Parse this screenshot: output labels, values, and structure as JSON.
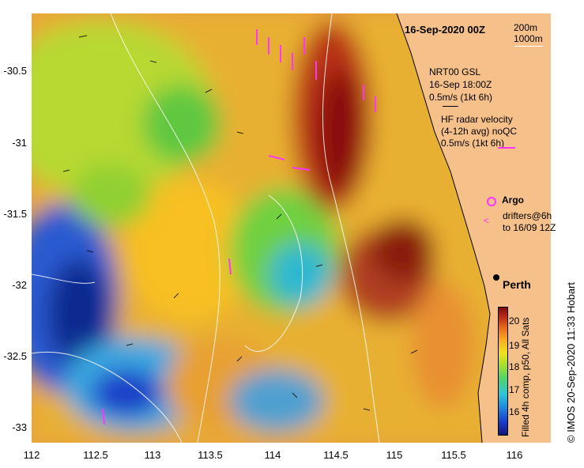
{
  "title": "16-Sep-2020 00Z",
  "legend": {
    "depth_200": "200m",
    "depth_1000": "1000m",
    "gsl_line1": "NRT00 GSL",
    "gsl_line2": "16-Sep 18:00Z",
    "gsl_line3": "0.5m/s (1kt 6h)",
    "hf_line1": "HF radar velocity",
    "hf_line2": "(4-12h avg) noQC",
    "hf_line3": "0.5m/s (1kt 6h)",
    "argo": "Argo",
    "drifters_line1": "drifters@6h",
    "drifters_line2": "to 16/09 12Z"
  },
  "place_label": "Perth",
  "credit": "© IMOS 20-Sep-2020 11:33 Hobart",
  "colorbar": {
    "label": "Filled 4h comp, p50, All Sats",
    "ticks": [
      "20",
      "19",
      "18",
      "17",
      "16"
    ]
  },
  "axes": {
    "x_ticks": [
      "112",
      "112.5",
      "113",
      "113.5",
      "114",
      "114.5",
      "115",
      "115.5",
      "116"
    ],
    "y_ticks": [
      "-30.5",
      "-31",
      "-31.5",
      "-32",
      "-32.5",
      "-33"
    ]
  },
  "colors": {
    "land": "#f5c08a",
    "hf_radar_vector": "#ff33ff",
    "gsl_vector": "#000000"
  }
}
